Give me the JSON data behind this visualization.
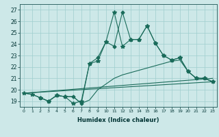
{
  "xlabel": "Humidex (Indice chaleur)",
  "background_color": "#cde8e8",
  "grid_color": "#9ecece",
  "line_color": "#1a6b5a",
  "xlim": [
    -0.5,
    23.5
  ],
  "ylim": [
    18.5,
    27.5
  ],
  "series": [
    {
      "x": [
        0,
        1,
        2,
        3,
        4,
        5,
        6,
        7,
        8,
        9,
        10,
        11,
        12,
        13,
        14,
        15,
        16,
        17,
        18,
        19,
        20,
        21,
        22,
        23
      ],
      "y": [
        19.7,
        19.6,
        19.3,
        19.0,
        19.5,
        19.4,
        18.8,
        19.0,
        22.3,
        22.5,
        24.2,
        26.8,
        23.8,
        24.4,
        24.4,
        25.6,
        24.1,
        23.0,
        22.6,
        22.8,
        21.6,
        21.0,
        21.0,
        20.7
      ],
      "marker": "*",
      "markersize": 4
    },
    {
      "x": [
        2,
        3,
        4,
        5,
        6,
        7,
        8,
        9,
        10,
        11,
        12,
        13,
        14,
        15,
        16,
        17,
        18,
        19,
        20,
        21,
        22,
        23
      ],
      "y": [
        19.3,
        19.0,
        19.5,
        19.4,
        19.4,
        18.8,
        22.3,
        22.8,
        24.2,
        23.8,
        26.8,
        24.4,
        24.4,
        25.6,
        24.1,
        23.0,
        22.6,
        22.8,
        21.6,
        21.0,
        21.0,
        20.7
      ],
      "marker": "D",
      "markersize": 2.5
    },
    {
      "x": [
        0,
        1,
        2,
        3,
        4,
        5,
        6,
        7,
        8,
        9,
        10,
        11,
        12,
        13,
        14,
        15,
        16,
        17,
        18,
        19,
        20,
        21,
        22,
        23
      ],
      "y": [
        19.7,
        19.6,
        19.3,
        19.0,
        19.5,
        19.4,
        19.4,
        18.8,
        19.1,
        20.0,
        20.5,
        21.0,
        21.3,
        21.5,
        21.7,
        21.9,
        22.1,
        22.3,
        22.5,
        22.6,
        21.6,
        21.0,
        21.0,
        20.7
      ],
      "marker": null,
      "markersize": 0
    },
    {
      "x": [
        0,
        23
      ],
      "y": [
        19.7,
        21.0
      ],
      "marker": null,
      "markersize": 0
    },
    {
      "x": [
        0,
        23
      ],
      "y": [
        19.7,
        20.7
      ],
      "marker": null,
      "markersize": 0
    }
  ]
}
